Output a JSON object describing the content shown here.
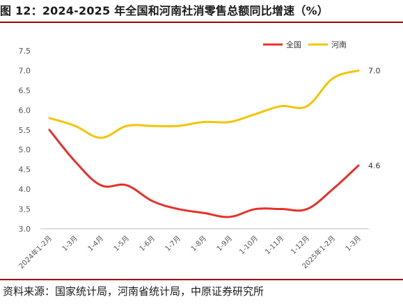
{
  "title": "图 12：2024-2025 年全国和河南社消零售总额同比增速（%）",
  "source": "资料来源：国家统计局，河南省统计局，中原证券研究所",
  "colors": {
    "national": "#e8302a",
    "henan": "#f5c400",
    "rule": "#a40000"
  },
  "chart_data": {
    "type": "line",
    "categories": [
      "2024年1-2月",
      "1-3月",
      "1-4月",
      "1-5月",
      "1-6月",
      "1-7月",
      "1-8月",
      "1-9月",
      "1-10月",
      "1-11月",
      "1-12月",
      "2025年1-2月",
      "1-3月"
    ],
    "series": [
      {
        "name": "全国",
        "values": [
          5.5,
          4.7,
          4.1,
          4.1,
          3.7,
          3.5,
          3.4,
          3.3,
          3.5,
          3.5,
          3.5,
          4.0,
          4.6
        ]
      },
      {
        "name": "河南",
        "values": [
          5.8,
          5.6,
          5.3,
          5.6,
          5.6,
          5.6,
          5.7,
          5.7,
          5.9,
          6.1,
          6.1,
          6.8,
          7.0
        ]
      }
    ],
    "end_labels": [
      "4.6",
      "7.0"
    ],
    "ylim": [
      3.0,
      7.5
    ],
    "yticks": [
      "3.0",
      "3.5",
      "4.0",
      "4.5",
      "5.0",
      "5.5",
      "6.0",
      "6.5",
      "7.0",
      "7.5"
    ],
    "legend_position": "top-right",
    "grid": false
  }
}
